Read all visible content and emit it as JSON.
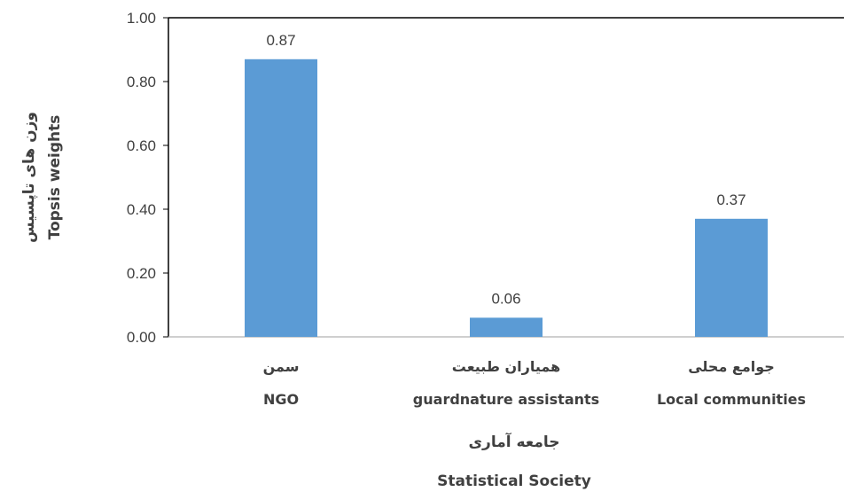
{
  "chart_data": {
    "type": "bar",
    "categories": [
      {
        "fa": "سمن",
        "en": "NGO"
      },
      {
        "fa": "همیاران طبیعت",
        "en": "guardnature assistants"
      },
      {
        "fa": "جوامع محلی",
        "en": "Local communities"
      }
    ],
    "values": [
      0.87,
      0.06,
      0.37
    ],
    "data_labels": [
      "0.87",
      "0.06",
      "0.37"
    ],
    "y_ticks": [
      "0.00",
      "0.20",
      "0.40",
      "0.60",
      "0.80",
      "1.00"
    ],
    "ylim": [
      0,
      1
    ],
    "xlabel": {
      "fa": "جامعه آماری",
      "en": "Statistical Society"
    },
    "ylabel": {
      "fa": "وزن های تاپسیس",
      "en": "Topsis weights"
    },
    "bar_color": "#5b9bd5",
    "grid": false,
    "legend": "none"
  }
}
